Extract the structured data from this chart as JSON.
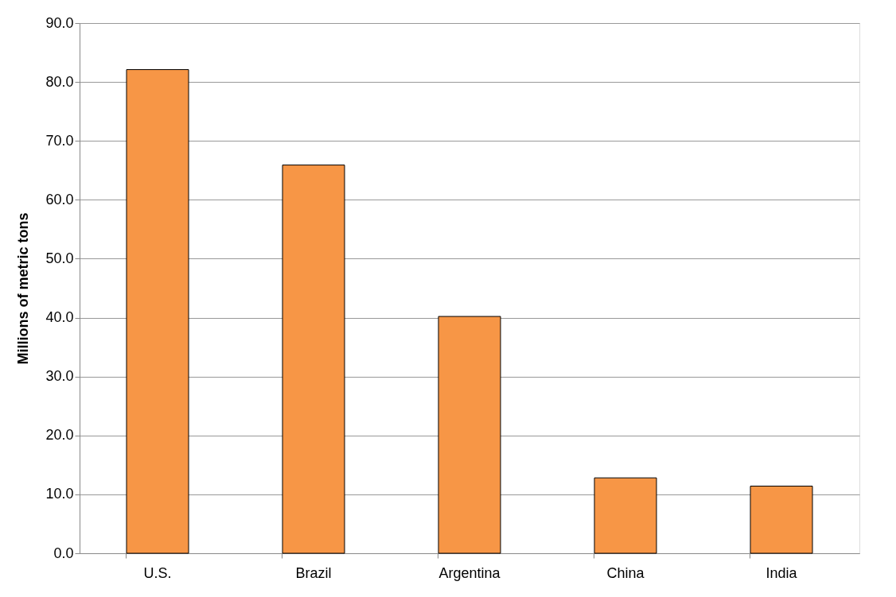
{
  "chart_data": {
    "type": "bar",
    "ylabel": "Millions of metric tons",
    "categories": [
      "U.S.",
      "Brazil",
      "Argentina",
      "China",
      "India"
    ],
    "values": [
      82.1,
      65.9,
      40.2,
      12.8,
      11.4
    ],
    "color": "#f79646",
    "ylim": [
      0,
      90
    ],
    "yticks": [
      {
        "value": 0,
        "label": "0.0"
      },
      {
        "value": 10,
        "label": "10.0"
      },
      {
        "value": 20,
        "label": "20.0"
      },
      {
        "value": 30,
        "label": "30.0"
      },
      {
        "value": 40,
        "label": "40.0"
      },
      {
        "value": 50,
        "label": "50.0"
      },
      {
        "value": 60,
        "label": "60.0"
      },
      {
        "value": 70,
        "label": "70.0"
      },
      {
        "value": 80,
        "label": "80.0"
      },
      {
        "value": 90,
        "label": "90.0"
      }
    ],
    "grid": "y"
  }
}
